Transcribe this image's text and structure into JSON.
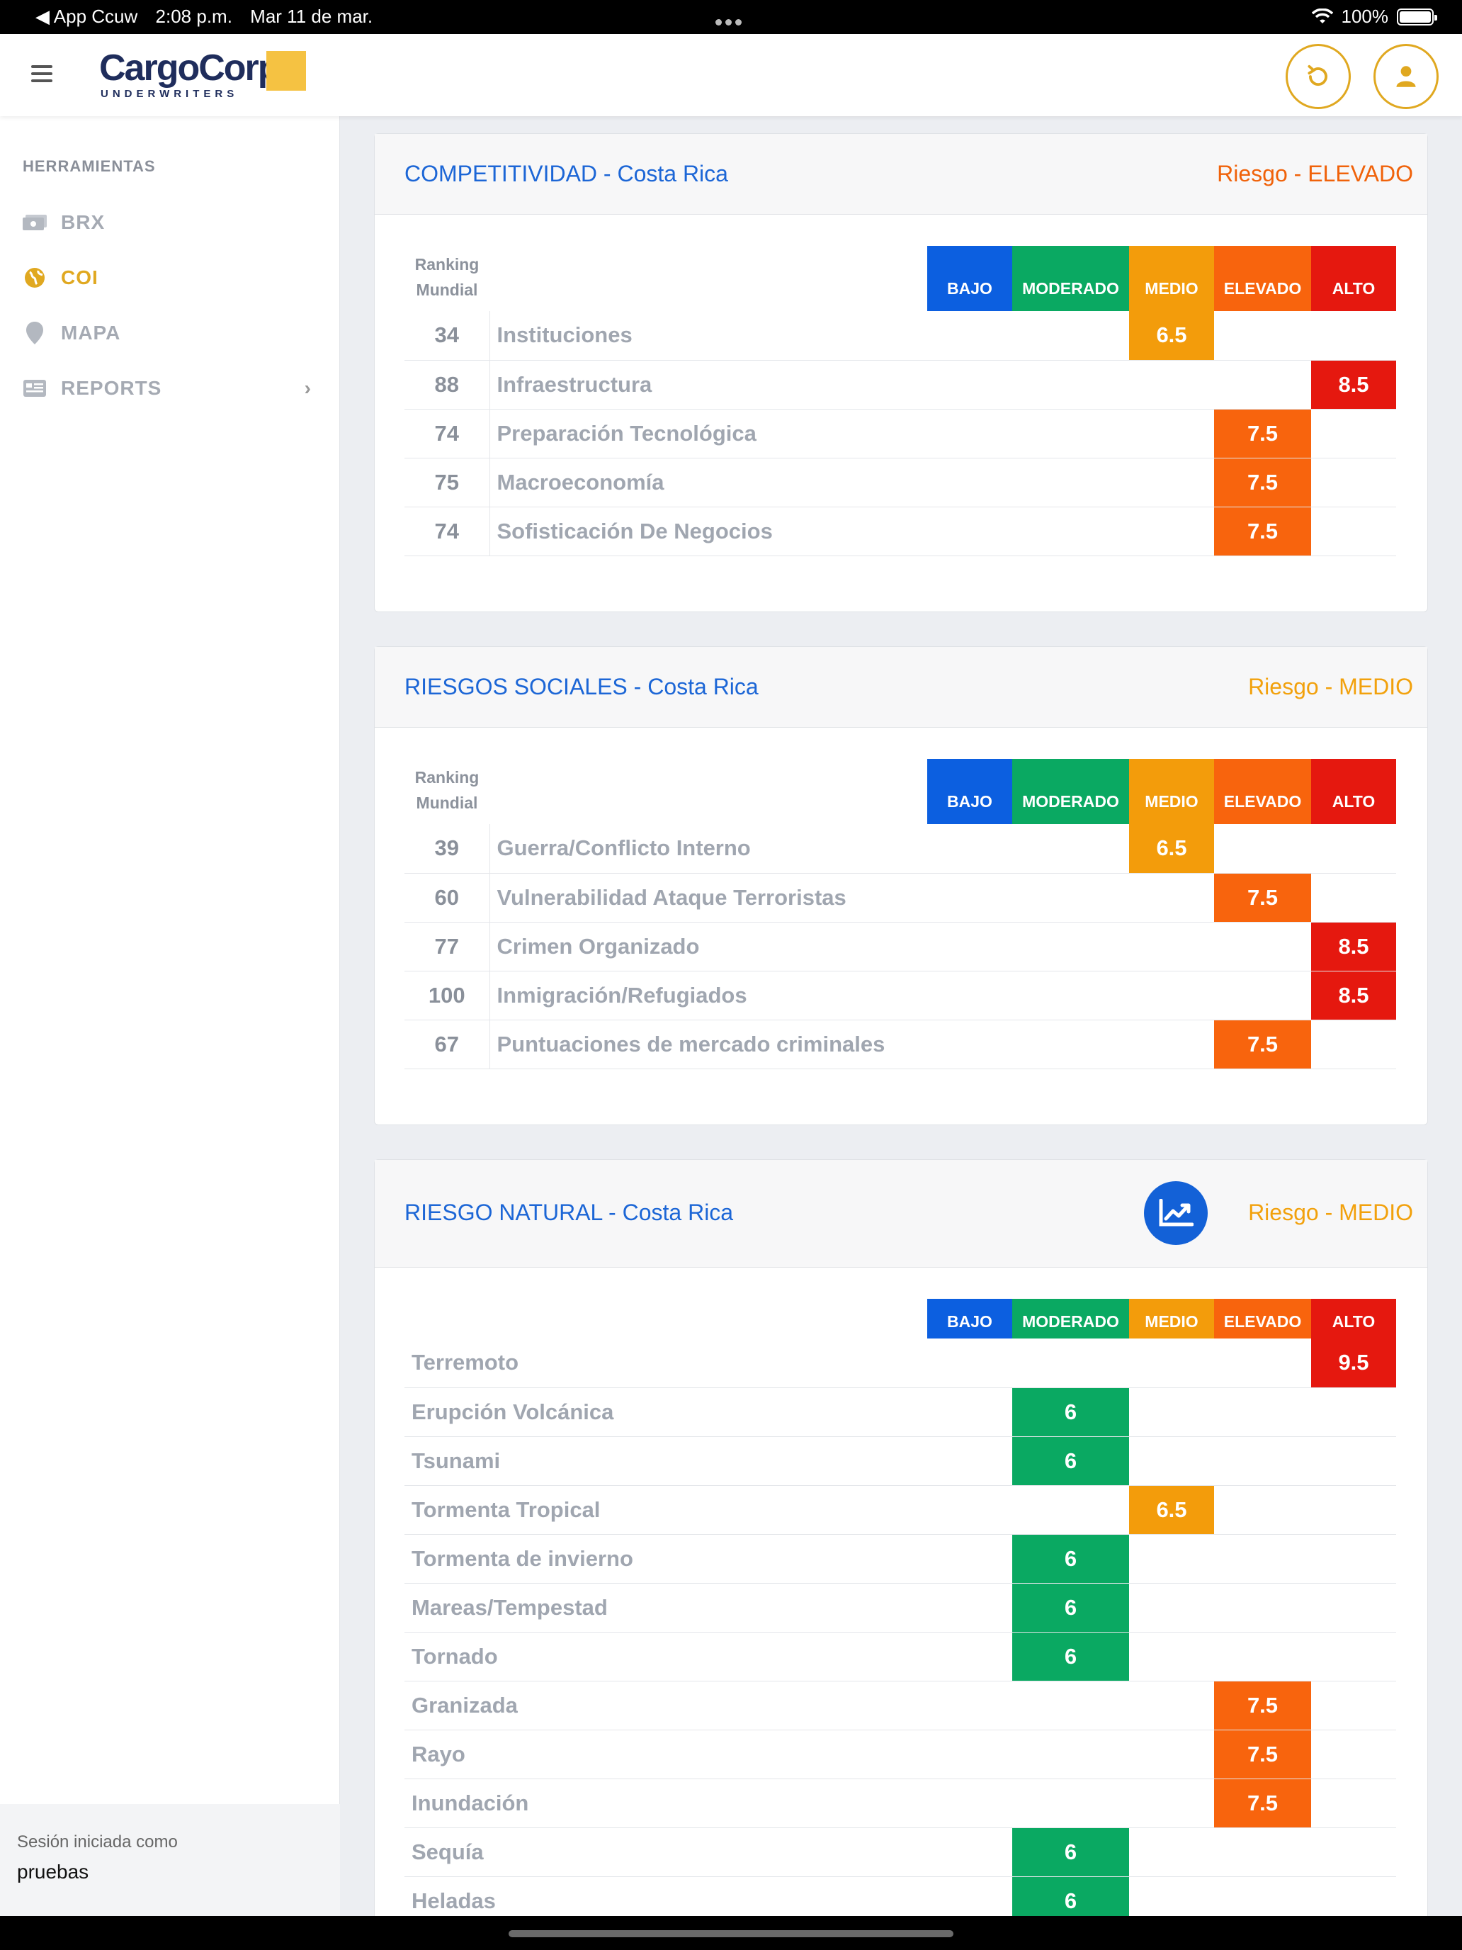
{
  "status_bar": {
    "back_label": "◀ App Ccuw",
    "time": "2:08 p.m.",
    "date": "Mar 11 de mar.",
    "battery": "100%"
  },
  "header": {
    "brand": "CargoCorp",
    "brand_sub": "UNDERWRITERS",
    "refresh_icon": "refresh-icon",
    "user_icon": "user-icon"
  },
  "sidebar": {
    "heading": "HERRAMIENTAS",
    "items": [
      {
        "label": "BRX",
        "icon": "money-icon",
        "active": false
      },
      {
        "label": "COI",
        "icon": "globe-icon",
        "active": true
      },
      {
        "label": "MAPA",
        "icon": "map-pin-icon",
        "active": false
      },
      {
        "label": "REPORTS",
        "icon": "newspaper-icon",
        "active": false
      }
    ],
    "session_label": "Sesión iniciada como",
    "session_user": "pruebas"
  },
  "levels": {
    "labels": [
      "BAJO",
      "MODERADO",
      "MEDIO",
      "ELEVADO",
      "ALTO"
    ],
    "colors": [
      "#0c5fe0",
      "#0aa962",
      "#f39c0b",
      "#f8640d",
      "#e5180f"
    ]
  },
  "ranking_header": [
    "Ranking",
    "Mundial"
  ],
  "sections": [
    {
      "title": "COMPETITIVIDAD - Costa Rica",
      "risk_label": "Riesgo - ELEVADO",
      "risk_color": "#f0620a",
      "has_ranking": true,
      "rows": [
        {
          "rank": "34",
          "name": "Instituciones",
          "value": "6.5",
          "level": 2
        },
        {
          "rank": "88",
          "name": "Infraestructura",
          "value": "8.5",
          "level": 4
        },
        {
          "rank": "74",
          "name": "Preparación Tecnológica",
          "value": "7.5",
          "level": 3
        },
        {
          "rank": "75",
          "name": "Macroeconomía",
          "value": "7.5",
          "level": 3
        },
        {
          "rank": "74",
          "name": "Sofisticación De Negocios",
          "value": "7.5",
          "level": 3
        }
      ]
    },
    {
      "title": "RIESGOS SOCIALES - Costa Rica",
      "risk_label": "Riesgo - MEDIO",
      "risk_color": "#f2a10c",
      "has_ranking": true,
      "rows": [
        {
          "rank": "39",
          "name": "Guerra/Conflicto Interno",
          "value": "6.5",
          "level": 2
        },
        {
          "rank": "60",
          "name": "Vulnerabilidad Ataque Terroristas",
          "value": "7.5",
          "level": 3
        },
        {
          "rank": "77",
          "name": "Crimen Organizado",
          "value": "8.5",
          "level": 4
        },
        {
          "rank": "100",
          "name": "Inmigración/Refugiados",
          "value": "8.5",
          "level": 4
        },
        {
          "rank": "67",
          "name": "Puntuaciones de mercado criminales",
          "value": "7.5",
          "level": 3
        }
      ]
    },
    {
      "title": "RIESGO NATURAL - Costa Rica",
      "risk_label": "Riesgo - MEDIO",
      "risk_color": "#f2a10c",
      "has_ranking": false,
      "trend_icon": "trend-chart-icon",
      "rows": [
        {
          "name": "Terremoto",
          "value": "9.5",
          "level": 4
        },
        {
          "name": "Erupción Volcánica",
          "value": "6",
          "level": 1
        },
        {
          "name": "Tsunami",
          "value": "6",
          "level": 1
        },
        {
          "name": "Tormenta Tropical",
          "value": "6.5",
          "level": 2
        },
        {
          "name": "Tormenta de invierno",
          "value": "6",
          "level": 1
        },
        {
          "name": "Mareas/Tempestad",
          "value": "6",
          "level": 1
        },
        {
          "name": "Tornado",
          "value": "6",
          "level": 1
        },
        {
          "name": "Granizada",
          "value": "7.5",
          "level": 3
        },
        {
          "name": "Rayo",
          "value": "7.5",
          "level": 3
        },
        {
          "name": "Inundación",
          "value": "7.5",
          "level": 3
        },
        {
          "name": "Sequía",
          "value": "6",
          "level": 1
        },
        {
          "name": "Heladas",
          "value": "6",
          "level": 1
        }
      ]
    }
  ]
}
